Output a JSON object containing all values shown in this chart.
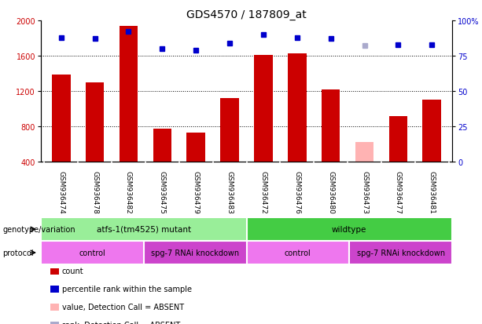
{
  "title": "GDS4570 / 187809_at",
  "samples": [
    "GSM936474",
    "GSM936478",
    "GSM936482",
    "GSM936475",
    "GSM936479",
    "GSM936483",
    "GSM936472",
    "GSM936476",
    "GSM936480",
    "GSM936473",
    "GSM936477",
    "GSM936481"
  ],
  "counts": [
    1390,
    1300,
    1940,
    770,
    730,
    1120,
    1610,
    1630,
    1220,
    620,
    920,
    1100
  ],
  "count_absent": [
    false,
    false,
    false,
    false,
    false,
    false,
    false,
    false,
    false,
    true,
    false,
    false
  ],
  "percentile_ranks": [
    88,
    87,
    92,
    80,
    79,
    84,
    90,
    88,
    87,
    82,
    83,
    83
  ],
  "rank_absent": [
    false,
    false,
    false,
    false,
    false,
    false,
    false,
    false,
    false,
    true,
    false,
    false
  ],
  "ylim_left": [
    400,
    2000
  ],
  "ylim_right": [
    0,
    100
  ],
  "yticks_left": [
    400,
    800,
    1200,
    1600,
    2000
  ],
  "yticks_right": [
    0,
    25,
    50,
    75,
    100
  ],
  "bar_color": "#cc0000",
  "bar_color_absent": "#ffb3b3",
  "dot_color": "#0000cc",
  "dot_color_absent": "#aaaacc",
  "grid_color": "#000000",
  "bg_color": "#ffffff",
  "genotype_groups": [
    {
      "label": "atfs-1(tm4525) mutant",
      "start": 0,
      "end": 6,
      "color": "#99ee99"
    },
    {
      "label": "wildtype",
      "start": 6,
      "end": 12,
      "color": "#44cc44"
    }
  ],
  "protocol_groups": [
    {
      "label": "control",
      "start": 0,
      "end": 3,
      "color": "#ee77ee"
    },
    {
      "label": "spg-7 RNAi knockdown",
      "start": 3,
      "end": 6,
      "color": "#cc44cc"
    },
    {
      "label": "control",
      "start": 6,
      "end": 9,
      "color": "#ee77ee"
    },
    {
      "label": "spg-7 RNAi knockdown",
      "start": 9,
      "end": 12,
      "color": "#cc44cc"
    }
  ],
  "legend_items": [
    {
      "label": "count",
      "color": "#cc0000"
    },
    {
      "label": "percentile rank within the sample",
      "color": "#0000cc"
    },
    {
      "label": "value, Detection Call = ABSENT",
      "color": "#ffb3b3"
    },
    {
      "label": "rank, Detection Call = ABSENT",
      "color": "#aaaacc"
    }
  ],
  "left_label_color": "#cc0000",
  "right_label_color": "#0000cc",
  "title_fontsize": 10,
  "tick_fontsize": 7,
  "sample_fontsize": 6.5
}
